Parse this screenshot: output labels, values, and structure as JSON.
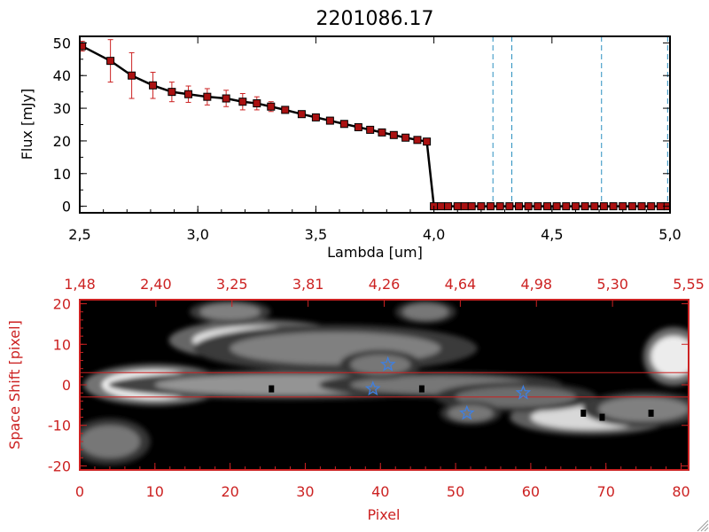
{
  "colors": {
    "top_axis": "#000000",
    "bottom_axis": "#cc2222",
    "marker_fill": "#aa1111",
    "error_bar": "#cc2222",
    "vline": "#2a8fc0",
    "star": "#3f7fdf",
    "hline": "#cc2222"
  },
  "chart_data": [
    {
      "type": "line",
      "title": "2201086.17",
      "xlabel": "Lambda [um]",
      "ylabel": "Flux [mJy]",
      "xlim": [
        2.5,
        5.0
      ],
      "ylim": [
        -2,
        52
      ],
      "xticks": [
        "2.5",
        "3.0",
        "3.5",
        "4.0",
        "4.5",
        "5.0"
      ],
      "yticks": [
        "0",
        "10",
        "20",
        "30",
        "40",
        "50"
      ],
      "x": [
        2.51,
        2.63,
        2.72,
        2.81,
        2.89,
        2.96,
        3.04,
        3.12,
        3.19,
        3.25,
        3.31,
        3.37,
        3.44,
        3.5,
        3.56,
        3.62,
        3.68,
        3.73,
        3.78,
        3.83,
        3.88,
        3.93,
        3.97,
        4.0,
        4.03,
        4.06,
        4.1,
        4.13,
        4.16,
        4.2,
        4.24,
        4.28,
        4.32,
        4.36,
        4.4,
        4.44,
        4.48,
        4.52,
        4.56,
        4.6,
        4.64,
        4.68,
        4.72,
        4.76,
        4.8,
        4.84,
        4.88,
        4.92,
        4.96,
        4.99
      ],
      "y": [
        49,
        44.5,
        40,
        37,
        35,
        34.3,
        33.5,
        33,
        32,
        31.5,
        30.5,
        29.5,
        28.2,
        27.2,
        26.2,
        25.2,
        24.2,
        23.4,
        22.6,
        21.8,
        21,
        20.3,
        19.8,
        0,
        0,
        0,
        0,
        0,
        0,
        0,
        0,
        0,
        0,
        0,
        0,
        0,
        0,
        0,
        0,
        0,
        0,
        0,
        0,
        0,
        0,
        0,
        0,
        0,
        0,
        0
      ],
      "yerr": [
        1.5,
        6.5,
        7,
        4,
        3,
        2.5,
        2.5,
        2.5,
        2.5,
        2,
        1.5,
        1,
        1,
        0.8,
        0.8,
        0.6,
        0.6,
        0.5,
        0.5,
        0.5,
        0.5,
        0.5,
        0.5,
        0.3,
        0.3,
        0.3,
        0.3,
        0.3,
        0.3,
        0.3,
        0.3,
        0.3,
        0.3,
        0.3,
        0.3,
        0.3,
        0.3,
        0.3,
        0.3,
        0.3,
        0.3,
        0.3,
        0.3,
        0.3,
        0.3,
        0.3,
        0.3,
        0.3,
        0.3,
        0.3
      ],
      "vlines": [
        4.25,
        4.33,
        4.71,
        4.99
      ]
    },
    {
      "type": "heatmap",
      "xlabel": "Pixel",
      "ylabel": "Space Shift [pixel]",
      "xlim": [
        0,
        81
      ],
      "ylim": [
        -21,
        21
      ],
      "xticks": [
        "0",
        "10",
        "20",
        "30",
        "40",
        "50",
        "60",
        "70",
        "80"
      ],
      "yticks": [
        "20",
        "10",
        "0",
        "-10",
        "-20"
      ],
      "top_ticks": [
        "1.48",
        "2.40",
        "3.25",
        "3.81",
        "4.26",
        "4.64",
        "4.98",
        "5.30",
        "5.55"
      ],
      "hlines": [
        3,
        -3
      ],
      "stars": [
        {
          "x": 41,
          "y": 5
        },
        {
          "x": 39,
          "y": -1
        },
        {
          "x": 51.5,
          "y": -7
        },
        {
          "x": 59,
          "y": -2
        }
      ],
      "blobs": [
        {
          "x": 10,
          "y": 0,
          "rx": 7,
          "ry": 3.5,
          "v": 1.0
        },
        {
          "x": 28,
          "y": 0,
          "rx": 18,
          "ry": 2.5,
          "v": 0.45
        },
        {
          "x": 48,
          "y": 0,
          "rx": 12,
          "ry": 2.2,
          "v": 0.3
        },
        {
          "x": 24,
          "y": 11,
          "rx": 9,
          "ry": 3.5,
          "v": 0.85
        },
        {
          "x": 34,
          "y": 9,
          "rx": 14,
          "ry": 4,
          "v": 0.35
        },
        {
          "x": 20,
          "y": 18,
          "rx": 4,
          "ry": 2,
          "v": 0.35
        },
        {
          "x": 46,
          "y": 18,
          "rx": 3,
          "ry": 2,
          "v": 0.3
        },
        {
          "x": 68,
          "y": -8,
          "rx": 8,
          "ry": 3,
          "v": 0.8
        },
        {
          "x": 58,
          "y": -3,
          "rx": 8,
          "ry": 2.5,
          "v": 0.25
        },
        {
          "x": 52,
          "y": -7,
          "rx": 3,
          "ry": 2,
          "v": 0.3
        },
        {
          "x": 79,
          "y": 7,
          "rx": 3,
          "ry": 5,
          "v": 0.9
        },
        {
          "x": 4,
          "y": -14,
          "rx": 4,
          "ry": 4,
          "v": 0.3
        },
        {
          "x": 40,
          "y": 5,
          "rx": 4,
          "ry": 2.5,
          "v": 0.3
        },
        {
          "x": 75,
          "y": -6,
          "rx": 6,
          "ry": 3,
          "v": 0.35
        }
      ],
      "dark_cells": [
        {
          "x": 25.5,
          "y": -1
        },
        {
          "x": 45.5,
          "y": -1
        },
        {
          "x": 67,
          "y": -7
        },
        {
          "x": 69.5,
          "y": -8
        },
        {
          "x": 76,
          "y": -7
        }
      ]
    }
  ]
}
